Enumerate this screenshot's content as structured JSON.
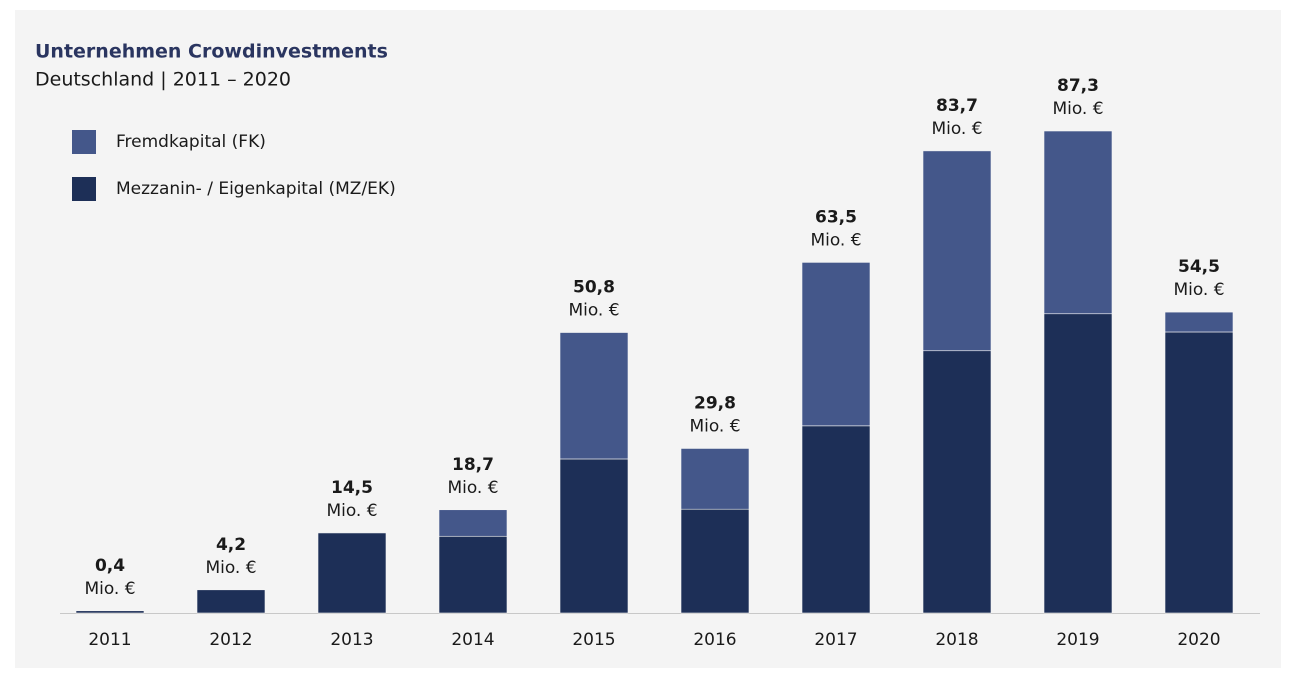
{
  "chart_data": {
    "type": "stacked_bar",
    "title": "Unternehmen Crowdinvestments",
    "subtitle": "Deutschland | 2011 – 2020",
    "categories": [
      "2011",
      "2012",
      "2013",
      "2014",
      "2015",
      "2016",
      "2017",
      "2018",
      "2019",
      "2020"
    ],
    "series": [
      {
        "name": "Fremdkapital (FK)",
        "color": "#44578a",
        "values": [
          0,
          0,
          0,
          4.8,
          22.9,
          11.0,
          29.6,
          36.2,
          33.1,
          3.6
        ]
      },
      {
        "name": "Mezzanin- / Eigenkapital (MZ/EK)",
        "color": "#1d2f57",
        "values": [
          0.4,
          4.2,
          14.5,
          13.9,
          27.9,
          18.8,
          33.9,
          47.5,
          54.2,
          50.9
        ]
      }
    ],
    "totals": [
      0.4,
      4.2,
      14.5,
      18.7,
      50.8,
      29.8,
      63.5,
      83.7,
      87.3,
      54.5
    ],
    "total_labels": [
      "0,4",
      "4,2",
      "14,5",
      "18,7",
      "50,8",
      "29,8",
      "63,5",
      "83,7",
      "87,3",
      "54,5"
    ],
    "unit_label": "Mio. €",
    "legend": "top-left"
  }
}
